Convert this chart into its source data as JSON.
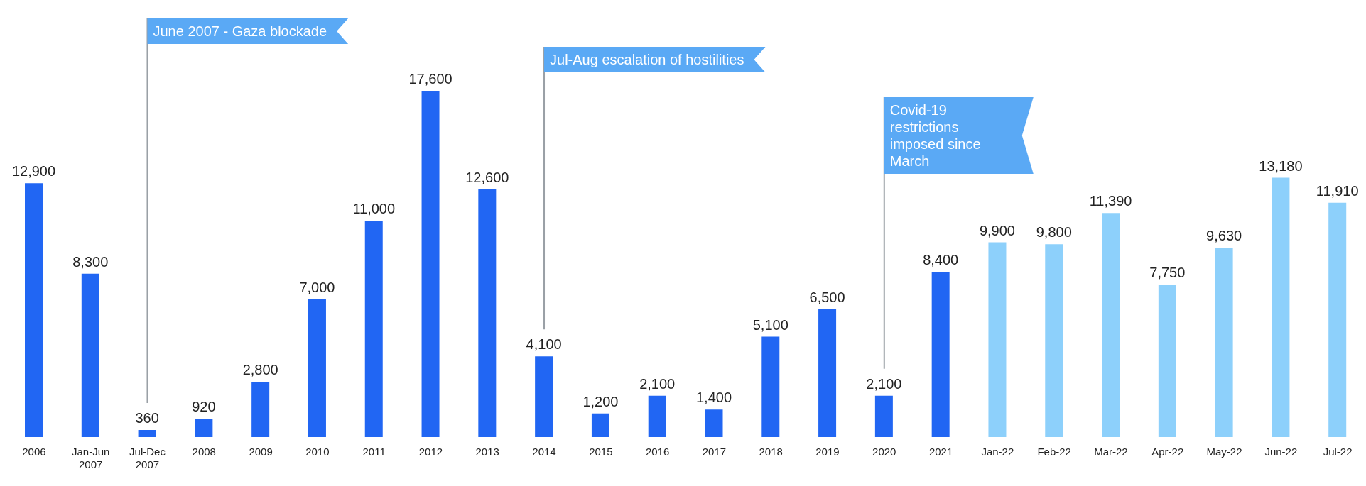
{
  "chart_data": {
    "type": "bar",
    "categories": [
      "2006",
      "Jan-Jun 2007",
      "Jul-Dec 2007",
      "2008",
      "2009",
      "2010",
      "2011",
      "2012",
      "2013",
      "2014",
      "2015",
      "2016",
      "2017",
      "2018",
      "2019",
      "2020",
      "2021",
      "Jan-22",
      "Feb-22",
      "Mar-22",
      "Apr-22",
      "May-22",
      "Jun-22",
      "Jul-22"
    ],
    "values": [
      12900,
      8300,
      360,
      920,
      2800,
      7000,
      11000,
      17600,
      12600,
      4100,
      1200,
      2100,
      1400,
      5100,
      6500,
      2100,
      8400,
      9900,
      9800,
      11390,
      7750,
      9630,
      13180,
      11910
    ],
    "value_labels": [
      "12,900",
      "8,300",
      "360",
      "920",
      "2,800",
      "7,000",
      "11,000",
      "17,600",
      "12,600",
      "4,100",
      "1,200",
      "2,100",
      "1,400",
      "5,100",
      "6,500",
      "2,100",
      "8,400",
      "9,900",
      "9,800",
      "11,390",
      "7,750",
      "9,630",
      "13,180",
      "11,910"
    ],
    "colors": [
      "#2166f3",
      "#2166f3",
      "#2166f3",
      "#2166f3",
      "#2166f3",
      "#2166f3",
      "#2166f3",
      "#2166f3",
      "#2166f3",
      "#2166f3",
      "#2166f3",
      "#2166f3",
      "#2166f3",
      "#2166f3",
      "#2166f3",
      "#2166f3",
      "#2166f3",
      "#8dd0fb",
      "#8dd0fb",
      "#8dd0fb",
      "#8dd0fb",
      "#8dd0fb",
      "#8dd0fb",
      "#8dd0fb"
    ],
    "ref_lines": [
      {
        "axis": "x",
        "value": "Jul-Dec 2007",
        "label": "June 2007 - Gaza blockade",
        "color": "#9aa0a6"
      },
      {
        "axis": "x",
        "value": "2014",
        "label": "Jul-Aug escalation of hostilities",
        "color": "#9aa0a6"
      },
      {
        "axis": "x",
        "value": "2020",
        "label": "Covid-19 restrictions imposed since March",
        "color": "#9aa0a6"
      }
    ]
  }
}
